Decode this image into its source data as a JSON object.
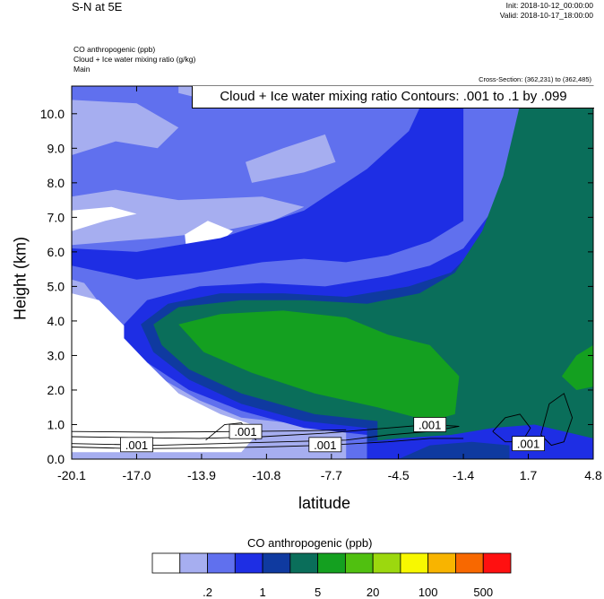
{
  "header": {
    "title": "S-N at 5E",
    "init": "Init: 2018-10-12_00:00:00",
    "valid": "Valid: 2018-10-17_18:00:00",
    "field1": "CO anthropogenic   (ppb)",
    "field2": "Cloud + Ice water mixing ratio   (g/kg)",
    "field3": "Main",
    "cross_section": "Cross-Section: (362,231) to (362,485)"
  },
  "chart_data": {
    "type": "heatmap",
    "title": "Cloud + Ice water mixing ratio Contours: .001 to .1 by .099",
    "xlabel": "latitude",
    "ylabel": "Height (km)",
    "xlim": [
      -20.1,
      4.8
    ],
    "ylim": [
      0.0,
      10.8
    ],
    "x_ticks": [
      "-20.1",
      "-17.0",
      "-13.9",
      "-10.8",
      "-7.7",
      "-4.5",
      "-1.4",
      "1.7",
      "4.8"
    ],
    "y_ticks": [
      "0.0",
      "1.0",
      "2.0",
      "3.0",
      "4.0",
      "5.0",
      "6.0",
      "7.0",
      "8.0",
      "9.0",
      "10.0"
    ],
    "colorbar": {
      "title": "CO anthropogenic  (ppb)",
      "colors": [
        "#ffffff",
        "#a6aef0",
        "#6070ee",
        "#1e2ee4",
        "#0f3aa0",
        "#0a6e5a",
        "#14a020",
        "#50c010",
        "#9cd80e",
        "#f8f800",
        "#f8b400",
        "#f86800",
        "#ff1010"
      ],
      "labels": [
        ".2",
        "1",
        "5",
        "20",
        "100",
        "500"
      ]
    },
    "contour_labels": [
      ".001",
      ".001",
      ".001",
      ".001",
      ".001"
    ],
    "contour_levels": [
      0.001,
      0.1
    ]
  }
}
